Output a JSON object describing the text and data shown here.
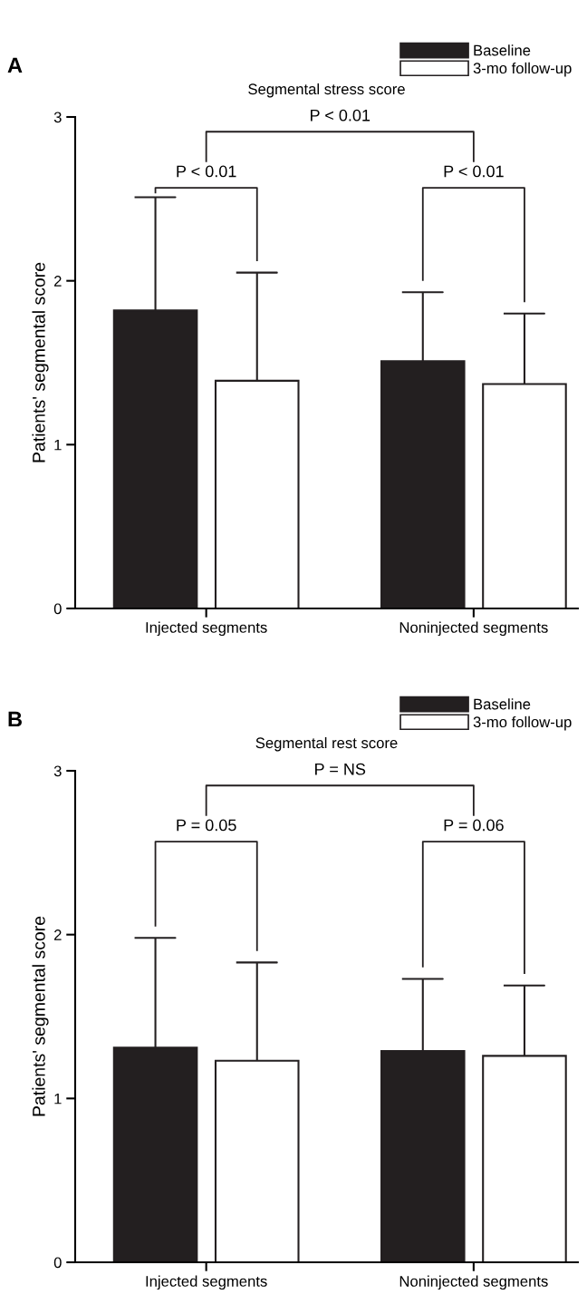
{
  "chart_data": [
    {
      "type": "bar",
      "title": "Segmental stress score",
      "ylabel": "Patients' segmental score",
      "categories": [
        "Injected segments",
        "Noninjected segments"
      ],
      "series": [
        {
          "name": "Baseline",
          "color": "#231f20",
          "values": [
            1.82,
            1.51
          ],
          "errors": [
            [
              1.82,
              2.51
            ],
            [
              1.51,
              1.93
            ]
          ]
        },
        {
          "name": "3-mo follow-up",
          "color": "#ffffff",
          "values": [
            1.39,
            1.37
          ],
          "errors": [
            [
              1.39,
              2.05
            ],
            [
              1.37,
              1.8
            ]
          ]
        }
      ],
      "ylim": [
        0,
        3
      ],
      "yticks": [
        0,
        1,
        2,
        3
      ],
      "grid": false,
      "legend": "top right",
      "annotations": [
        "A",
        "P < 0.01",
        "P < 0.01",
        "P < 0.01"
      ]
    },
    {
      "type": "bar",
      "title": "Segmental rest score",
      "ylabel": "Patients' segmental score",
      "categories": [
        "Injected segments",
        "Noninjected segments"
      ],
      "series": [
        {
          "name": "Baseline",
          "color": "#231f20",
          "values": [
            1.31,
            1.29
          ],
          "errors": [
            [
              1.31,
              1.98
            ],
            [
              1.29,
              1.73
            ]
          ]
        },
        {
          "name": "3-mo follow-up",
          "color": "#ffffff",
          "values": [
            1.23,
            1.26
          ],
          "errors": [
            [
              1.23,
              1.83
            ],
            [
              1.26,
              1.69
            ]
          ]
        }
      ],
      "ylim": [
        0,
        3
      ],
      "yticks": [
        0,
        1,
        2,
        3
      ],
      "grid": false,
      "legend": "top right",
      "annotations": [
        "B",
        "P = NS",
        "P = 0.05",
        "P = 0.06"
      ]
    }
  ]
}
